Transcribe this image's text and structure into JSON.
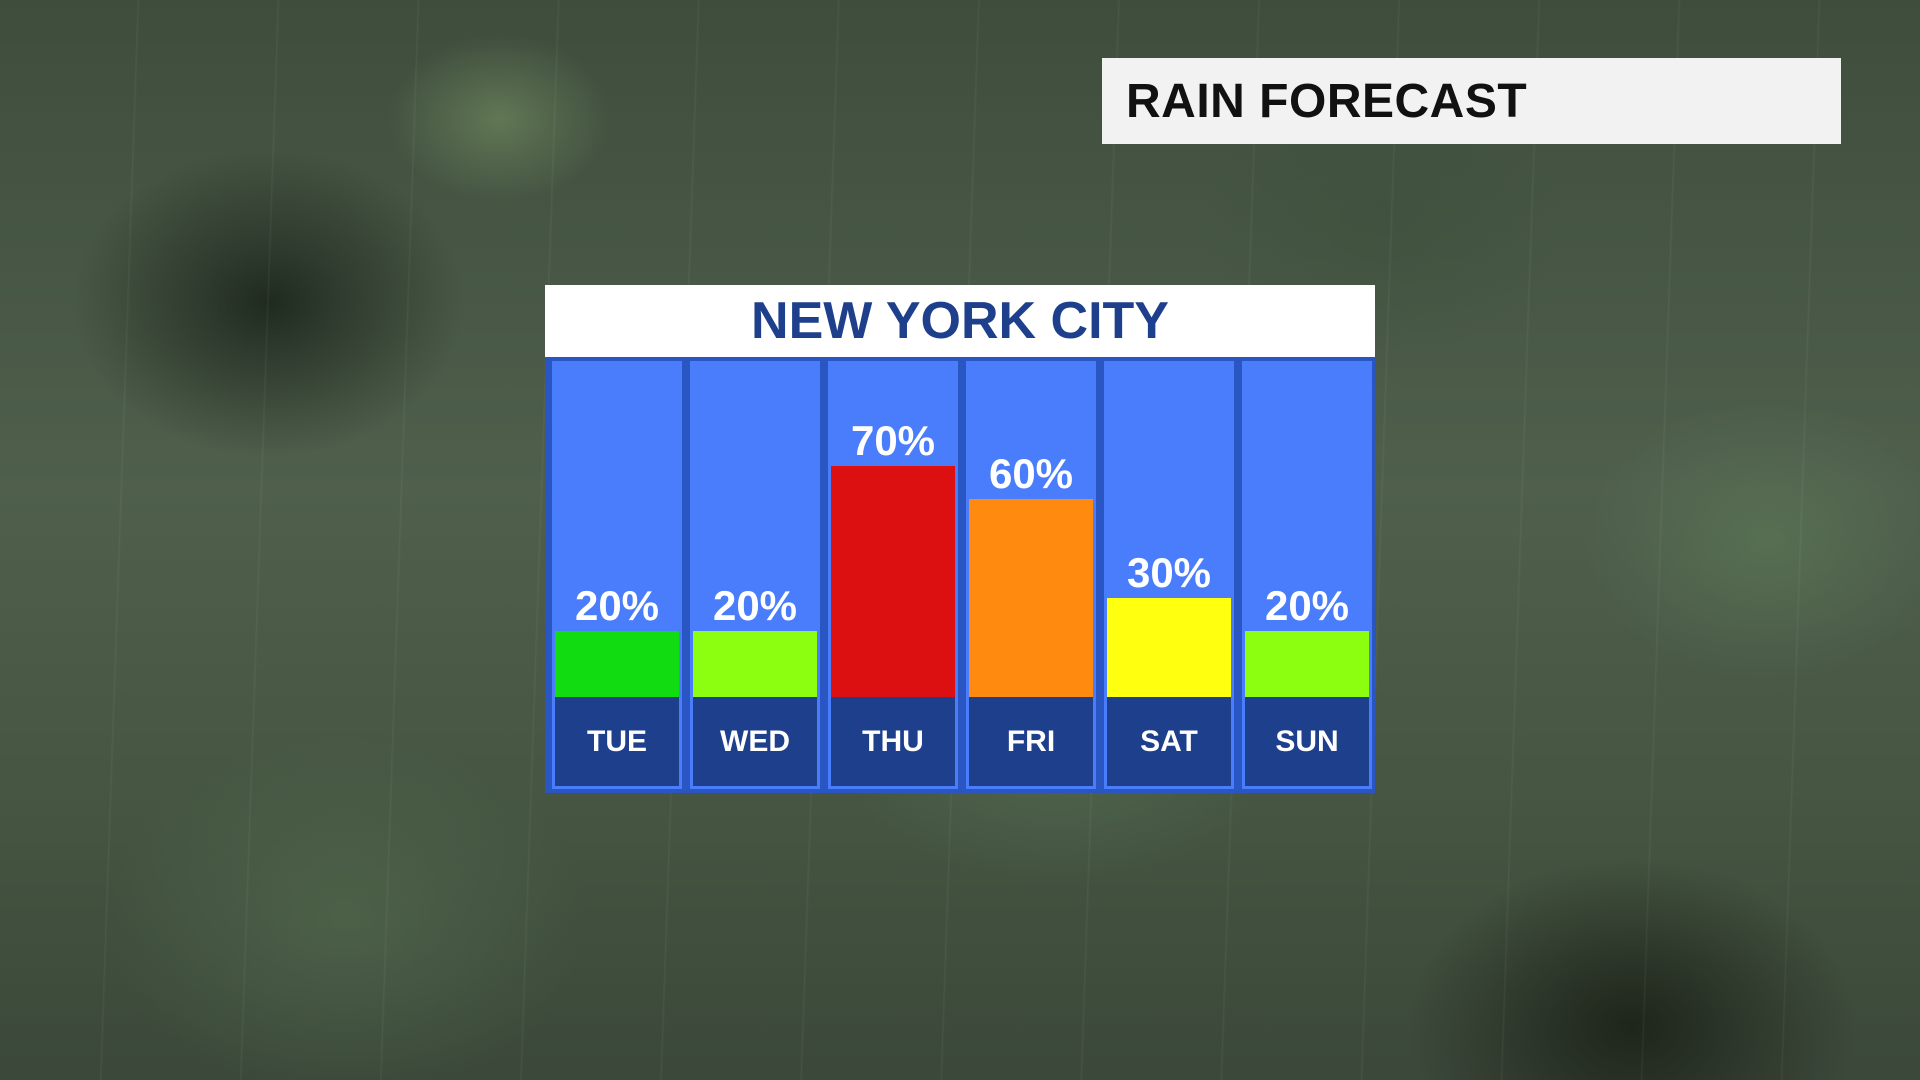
{
  "header": {
    "title": "RAIN FORECAST"
  },
  "chart_data": {
    "type": "bar",
    "title": "NEW YORK CITY",
    "categories": [
      "TUE",
      "WED",
      "THU",
      "FRI",
      "SAT",
      "SUN"
    ],
    "values": [
      20,
      20,
      70,
      60,
      30,
      20
    ],
    "value_labels": [
      "20%",
      "20%",
      "70%",
      "60%",
      "30%",
      "20%"
    ],
    "bar_colors": [
      "#11dc11",
      "#8cff11",
      "#dc1010",
      "#ff8a0f",
      "#ffff10",
      "#8cff11"
    ],
    "column_color": "#4a7dfb",
    "label_band_color": "#1e3f8c",
    "title_color": "#1e3f8c",
    "ylim": [
      0,
      100
    ],
    "grid": false,
    "legend": "none"
  }
}
